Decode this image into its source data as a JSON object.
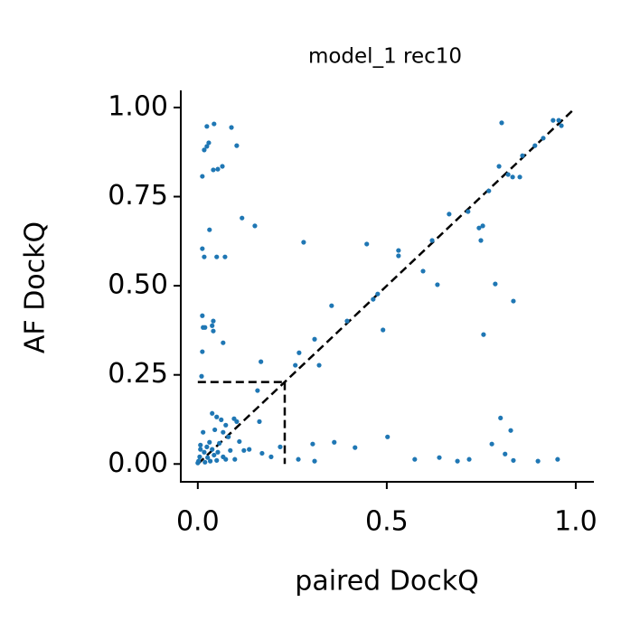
{
  "chart_data": {
    "type": "scatter",
    "title": "model_1 rec10",
    "xlabel": "paired DockQ",
    "ylabel": "AF DockQ",
    "color": "#1f77b4",
    "xlim": [
      -0.045,
      1.048
    ],
    "ylim": [
      -0.05,
      1.048
    ],
    "xticks": [
      {
        "value": 0.0,
        "label": "0.0"
      },
      0.5,
      {
        "value": 1.0,
        "label": "1.0"
      }
    ],
    "yticks": [
      {
        "value": 0.0,
        "label": "0.00"
      },
      0.25,
      {
        "value": 0.5,
        "label": "0.50"
      },
      {
        "value": 0.75,
        "label": "0.75"
      },
      {
        "value": 1.0,
        "label": "1.00"
      }
    ],
    "diagonal": [
      0,
      0.99
    ],
    "threshold": 0.23,
    "x": [
      0.024,
      0.043,
      0.089,
      0.024,
      0.017,
      0.029,
      0.103,
      0.012,
      0.041,
      0.053,
      0.065,
      0.031,
      0.117,
      0.151,
      0.012,
      0.017,
      0.05,
      0.072,
      0.012,
      0.041,
      0.038,
      0.014,
      0.019,
      0.041,
      0.067,
      0.012,
      0.01,
      0.167,
      0.158,
      0.28,
      0.354,
      0.395,
      0.447,
      0.49,
      0.531,
      0.531,
      0.464,
      0.476,
      0.596,
      0.62,
      0.634,
      0.665,
      0.715,
      0.744,
      0.754,
      0.749,
      0.756,
      0.77,
      0.787,
      0.835,
      0.804,
      0.797,
      0.821,
      0.833,
      0.852,
      0.859,
      0.892,
      0.914,
      0.94,
      0.955,
      0.962,
      0.268,
      0.258,
      0.321,
      0.309,
      0.304,
      0.361,
      0.416,
      0.502,
      0.266,
      0.309,
      0.574,
      0.639,
      0.687,
      0.718,
      0.778,
      0.801,
      0.828,
      0.813,
      0.835,
      0.9,
      0.952,
      0.218,
      0.17,
      0.194,
      0.163,
      0.103,
      0.11,
      0.096,
      0.038,
      0.05,
      0.062,
      0.074,
      0.014,
      0.045,
      0.067,
      0.081,
      0.057,
      0.007,
      0.024,
      0.038,
      0.017,
      0.053,
      0.086,
      0.005,
      0.026,
      0.043,
      0.067,
      0.098,
      0.002,
      0.019,
      0.033,
      0.05,
      0.074,
      0.007,
      0.031,
      0.0,
      0.122,
      0.136
    ],
    "y": [
      0.947,
      0.954,
      0.944,
      0.891,
      0.881,
      0.901,
      0.893,
      0.807,
      0.825,
      0.827,
      0.835,
      0.657,
      0.69,
      0.668,
      0.604,
      0.581,
      0.581,
      0.581,
      0.416,
      0.401,
      0.388,
      0.383,
      0.383,
      0.373,
      0.34,
      0.315,
      0.246,
      0.287,
      0.206,
      0.622,
      0.444,
      0.401,
      0.617,
      0.376,
      0.599,
      0.584,
      0.462,
      0.477,
      0.541,
      0.627,
      0.503,
      0.701,
      0.708,
      0.662,
      0.668,
      0.627,
      0.363,
      0.766,
      0.505,
      0.457,
      0.957,
      0.835,
      0.812,
      0.805,
      0.805,
      0.865,
      0.893,
      0.914,
      0.964,
      0.964,
      0.949,
      0.312,
      0.277,
      0.277,
      0.35,
      0.056,
      0.061,
      0.046,
      0.076,
      0.013,
      0.008,
      0.013,
      0.018,
      0.008,
      0.013,
      0.056,
      0.129,
      0.094,
      0.028,
      0.01,
      0.008,
      0.013,
      0.048,
      0.03,
      0.02,
      0.119,
      0.119,
      0.063,
      0.127,
      0.142,
      0.132,
      0.124,
      0.109,
      0.089,
      0.096,
      0.089,
      0.076,
      0.058,
      0.053,
      0.048,
      0.041,
      0.033,
      0.033,
      0.038,
      0.02,
      0.018,
      0.025,
      0.02,
      0.013,
      0.008,
      0.005,
      0.008,
      0.01,
      0.013,
      0.041,
      0.061,
      0.003,
      0.038,
      0.041
    ]
  }
}
